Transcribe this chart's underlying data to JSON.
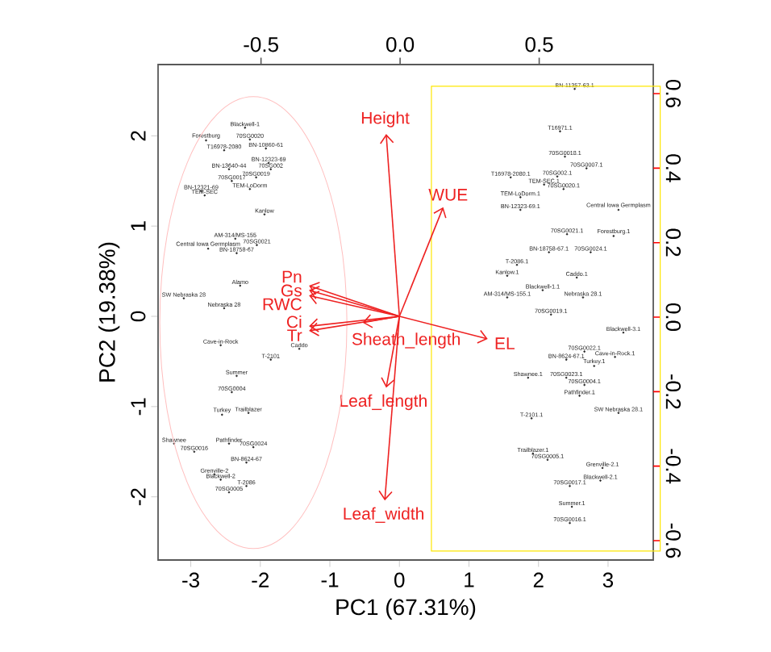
{
  "chart_data": {
    "type": "scatter",
    "xlabel": "PC1 (67.31%)",
    "ylabel": "PC2 (19.38%)",
    "xlim": [
      -3.47,
      3.65
    ],
    "ylim": [
      -2.7,
      2.79
    ],
    "xticks": [
      -3,
      -2,
      -1,
      0,
      1,
      2,
      3
    ],
    "yticks": [
      -2,
      -1,
      0,
      1,
      2
    ],
    "x2lim": [
      -0.87,
      0.91
    ],
    "x2ticks": [
      -0.5,
      {
        "value": 0,
        "label": "0.0"
      },
      0.5
    ],
    "y2lim": [
      -0.652,
      0.678
    ],
    "y2ticks": [
      -0.6,
      -0.4,
      -0.2,
      {
        "value": 0,
        "label": "0.0"
      },
      0.2,
      0.4,
      0.6
    ],
    "marker": "circle",
    "annotations": [
      "Height",
      "WUE",
      "EL",
      "Leaf_length",
      "Leaf_width",
      "Sheath_length",
      "Pn",
      "Gs",
      "RWC",
      "Ci",
      "Tr"
    ],
    "series": [
      {
        "color": "#222222",
        "x": [
          -2.22,
          -2.78,
          -2.15,
          -1.92,
          -2.52,
          -1.88,
          -2.45,
          -1.85,
          -2.06,
          -2.41,
          -2.85,
          -2.8,
          -2.15,
          -1.94,
          -2.36,
          -2.75,
          -2.05,
          -2.34,
          -2.29,
          -3.1,
          -2.52,
          -2.57,
          -1.44,
          -1.85,
          -2.34,
          -2.41,
          -2.55,
          -2.17,
          -3.24,
          -2.95,
          -2.45,
          -2.1,
          -2.2,
          -2.66,
          -2.57,
          -2.2,
          -2.45,
          2.52,
          2.31,
          2.38,
          2.69,
          2.27,
          1.6,
          2.08,
          2.36,
          1.74,
          1.74,
          3.15,
          2.41,
          3.08,
          2.15,
          2.75,
          1.69,
          1.55,
          2.55,
          2.06,
          1.55,
          2.64,
          2.18,
          3.22,
          2.66,
          2.4,
          3.1,
          2.8,
          1.85,
          2.4,
          2.66,
          2.59,
          3.15,
          1.9,
          1.92,
          2.13,
          2.92,
          2.89,
          2.45,
          2.48,
          2.45
        ],
        "values": [
          2.09,
          1.95,
          1.96,
          1.86,
          1.84,
          1.7,
          1.63,
          1.63,
          1.54,
          1.5,
          1.39,
          1.34,
          1.41,
          1.13,
          0.86,
          0.75,
          0.79,
          0.7,
          0.34,
          0.2,
          0.09,
          -0.32,
          -0.36,
          -0.48,
          -0.66,
          -0.84,
          -1.09,
          -1.07,
          -1.41,
          -1.5,
          -1.41,
          -1.45,
          -1.62,
          -1.75,
          -1.81,
          -1.88,
          -1.95,
          2.52,
          2.05,
          1.77,
          1.64,
          1.55,
          1.54,
          1.46,
          1.41,
          1.32,
          1.18,
          1.18,
          0.91,
          0.89,
          0.71,
          0.71,
          0.57,
          0.45,
          0.43,
          0.29,
          0.21,
          0.21,
          0.02,
          -0.18,
          -0.39,
          -0.48,
          -0.45,
          -0.55,
          -0.68,
          -0.68,
          -0.76,
          -0.88,
          -1.07,
          -1.13,
          -1.52,
          -1.59,
          -1.68,
          -1.82,
          -1.88,
          -2.11,
          -2.29
        ],
        "value_labels": [
          "Blackwell-1",
          "Forestburg",
          "70SG0020",
          "BN-10860-61",
          "T16978-2080",
          "BN-12323-69",
          "BN-13640-44",
          "70SG002",
          "70SG0019",
          "70SG0017",
          "BN-12321-69",
          "TEM-SEC",
          "TEM-LoDorm",
          "Kanlow",
          "AM-314/MS-155",
          "Central Iowa Germplasm",
          "70SG0021",
          "BN-18758-67",
          "Alamo",
          "SW Nebraska 28",
          "Nebraska 28",
          "Cave-in-Rock",
          "Caddo",
          "T-2101",
          "Summer",
          "70SG0004",
          "Turkey",
          "Trailblazer",
          "Shawnee",
          "70SG0016",
          "Pathfinder",
          "70SG0024",
          "BN-8624-67",
          "Grenville-2",
          "Blackwell-2",
          "T-2086",
          "70SG0005",
          "BN-11357-63.1",
          "T16971.1",
          "70SG0018.1",
          "70SG0007.1",
          "70SG002.1",
          "T16978-2080.1",
          "TEM-SEC.1",
          "70SG0020.1",
          "TEM-LoDorm.1",
          "BN-12323-69.1",
          "Central Iowa Germplasm",
          "70SG0021.1",
          "Forestburg.1",
          "BN-18758-67.1",
          "70SG0024.1",
          "T-2086.1",
          "Kanlow.1",
          "Caddo.1",
          "Blackwell-1.1",
          "AM-314/MS-155.1",
          "Nebraska 28.1",
          "70SG0019.1",
          "Blackwell-3.1",
          "70SG0022.1",
          "BN-8624-67.1",
          "Cave-in-Rock.1",
          "Turkey.1",
          "Shawnee.1",
          "70SG0023.1",
          "70SG0004.1",
          "Pathfinder.1",
          "SW Nebraska 28.1",
          "T-2101.1",
          "Trailblazer.1",
          "70SG0005.1",
          "Grenville-2.1",
          "Blackwell-2.1",
          "70SG0017.1",
          "Summer.1",
          "70SG0016.1"
        ]
      }
    ]
  }
}
